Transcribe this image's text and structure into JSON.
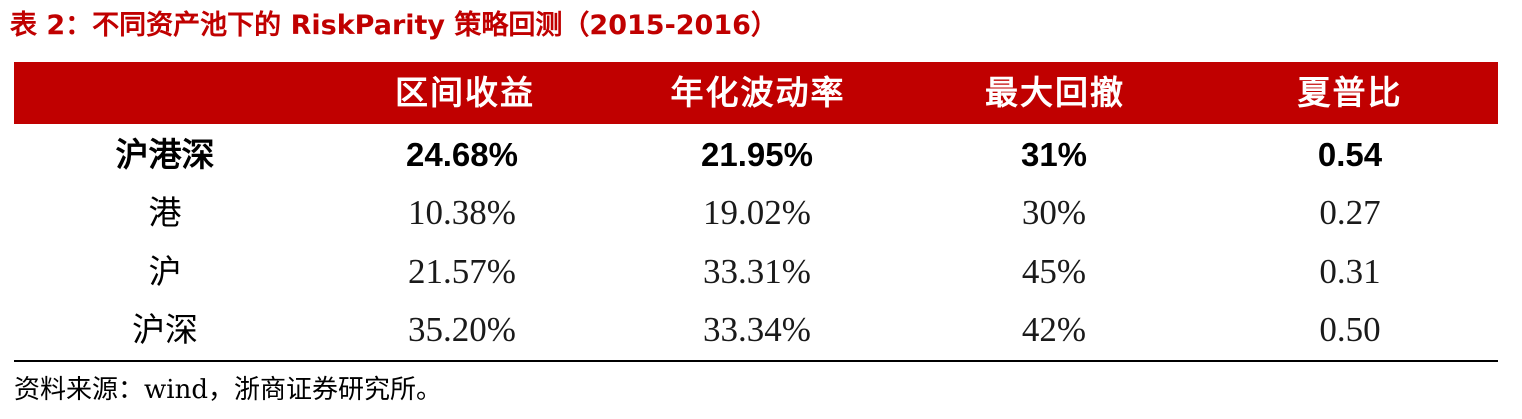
{
  "title": "表 2：不同资产池下的 RiskParity 策略回测（2015-2016）",
  "table": {
    "headers": [
      "",
      "区间收益",
      "年化波动率",
      "最大回撤",
      "夏普比"
    ],
    "rows": [
      {
        "name": "沪港深",
        "values": [
          "24.68%",
          "21.95%",
          "31%",
          "0.54"
        ]
      },
      {
        "name": "港",
        "values": [
          "10.38%",
          "19.02%",
          "30%",
          "0.27"
        ]
      },
      {
        "name": "沪",
        "values": [
          "21.57%",
          "33.31%",
          "45%",
          "0.31"
        ]
      },
      {
        "name": "沪深",
        "values": [
          "35.20%",
          "33.34%",
          "42%",
          "0.50"
        ]
      }
    ]
  },
  "source": "资料来源：wind，浙商证券研究所。",
  "colors": {
    "accent": "#c00000",
    "header_text": "#ffffff",
    "body_text": "#000000"
  }
}
